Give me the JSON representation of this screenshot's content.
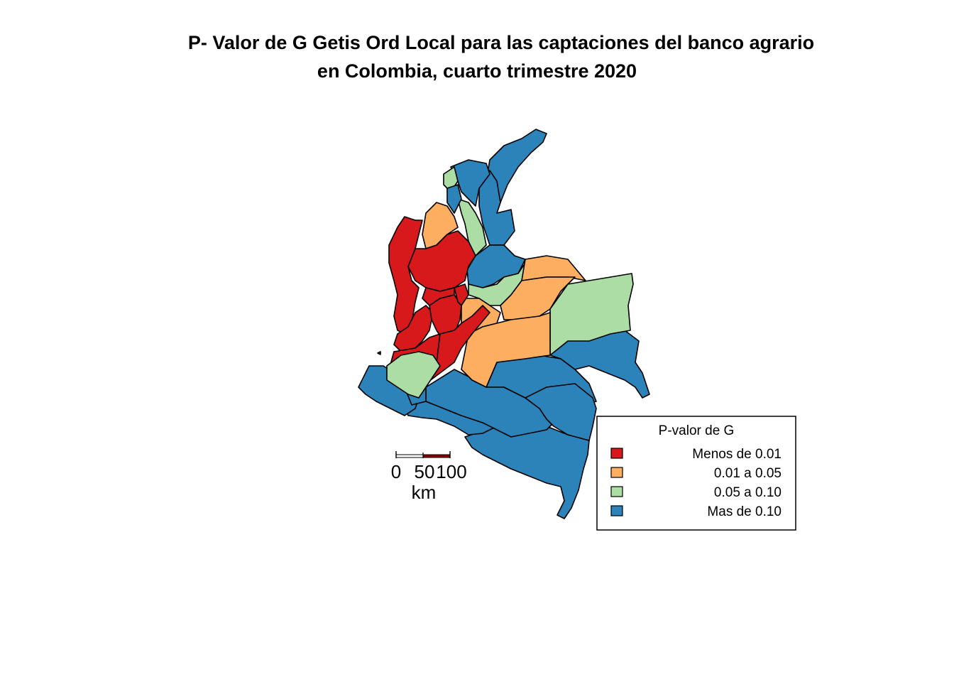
{
  "title": {
    "line1": "P- Valor de G Getis Ord Local para las captaciones del banco agrario",
    "line2": "en Colombia, cuarto trimestre 2020"
  },
  "legend": {
    "title": "P-valor de G",
    "items": [
      {
        "label": "Menos de 0.01",
        "color": "#d7191c"
      },
      {
        "label": "0.01 a 0.05",
        "color": "#fdae61"
      },
      {
        "label": "0.05 a 0.10",
        "color": "#abdda4"
      },
      {
        "label": "Mas de 0.10",
        "color": "#2b83ba"
      }
    ]
  },
  "scale_bar": {
    "ticks": [
      "0",
      "50",
      "100"
    ],
    "unit": "km"
  },
  "colors": {
    "red": "#d7191c",
    "orange": "#fdae61",
    "green": "#abdda4",
    "blue": "#2b83ba",
    "border": "#000000"
  }
}
